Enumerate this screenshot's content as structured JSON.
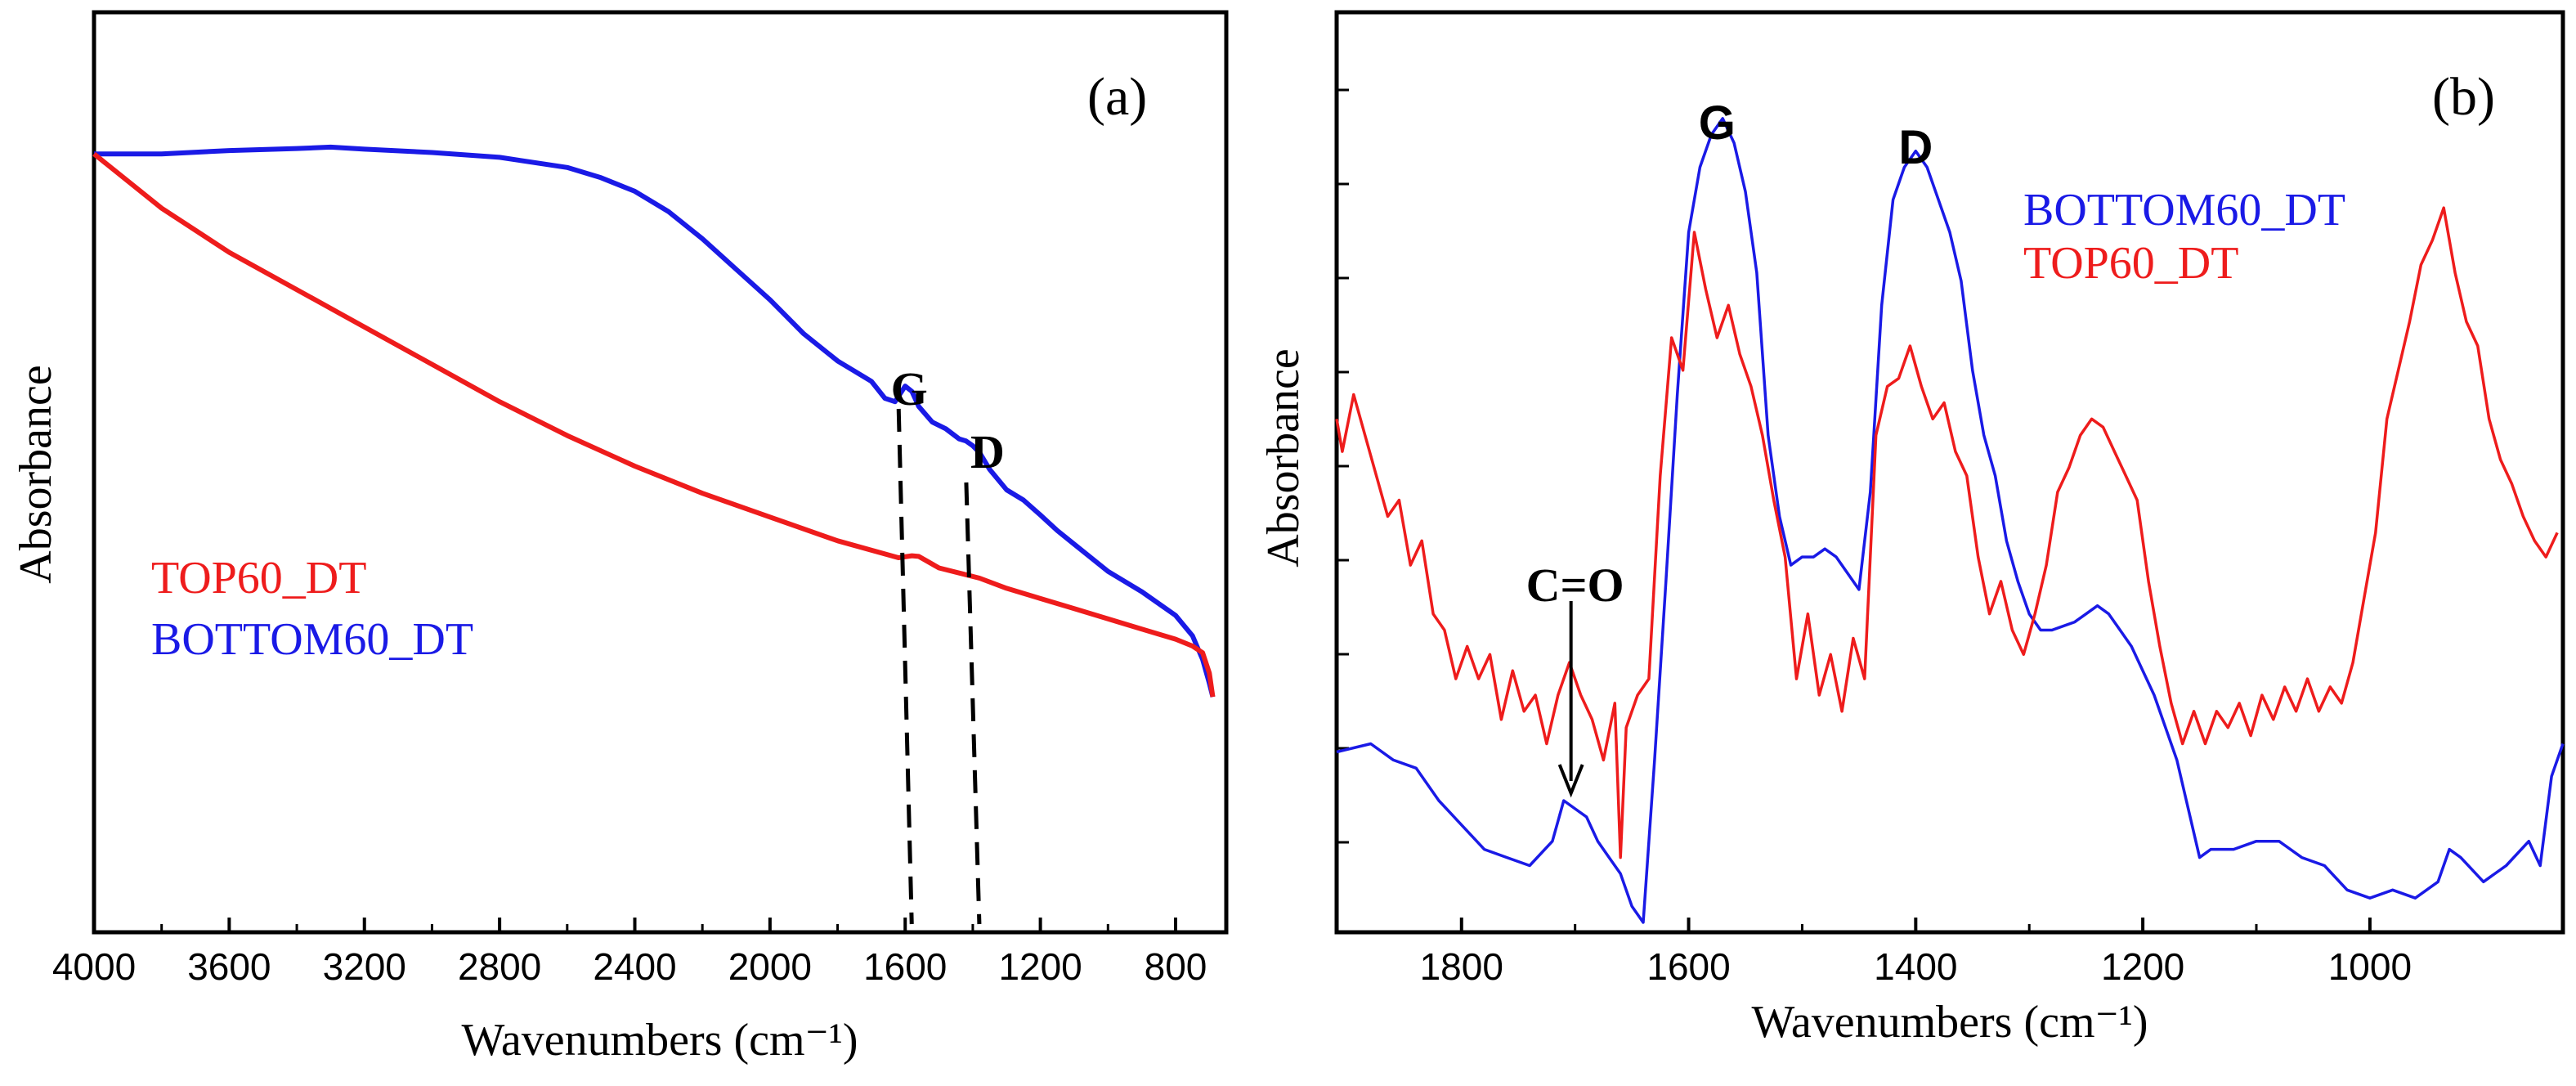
{
  "chart_data": [
    {
      "panel_tag": "(a)",
      "type": "line",
      "xlabel": "Wavenumbers (cm⁻¹)",
      "ylabel": "Absorbance",
      "xlim": [
        4000,
        650
      ],
      "ylim": [
        0,
        1
      ],
      "x_reversed": true,
      "y_ticks_labeled": false,
      "xticks": [
        4000,
        3600,
        3200,
        2800,
        2400,
        2000,
        1600,
        1200,
        800
      ],
      "xtick_labels": [
        "4000",
        "3600",
        "3200",
        "2800",
        "2400",
        "2000",
        "1600",
        "1200",
        "800"
      ],
      "legend": [
        {
          "label": "TOP60_DT",
          "color": "#ee1c1c"
        },
        {
          "label": "BOTTOM60_DT",
          "color": "#1a1ae6"
        }
      ],
      "series": [
        {
          "name": "BOTTOM60_DT",
          "color": "#1a1ae6",
          "x": [
            4000,
            3900,
            3800,
            3600,
            3400,
            3300,
            3200,
            3000,
            2800,
            2600,
            2500,
            2400,
            2300,
            2200,
            2100,
            2000,
            1900,
            1800,
            1750,
            1700,
            1660,
            1630,
            1600,
            1580,
            1560,
            1520,
            1480,
            1440,
            1420,
            1400,
            1380,
            1350,
            1300,
            1250,
            1200,
            1150,
            1100,
            1000,
            900,
            800,
            750,
            720,
            700,
            690
          ],
          "y": [
            0.96,
            0.96,
            0.96,
            0.965,
            0.968,
            0.97,
            0.967,
            0.962,
            0.955,
            0.94,
            0.925,
            0.905,
            0.875,
            0.835,
            0.79,
            0.745,
            0.695,
            0.655,
            0.64,
            0.625,
            0.6,
            0.595,
            0.618,
            0.61,
            0.588,
            0.565,
            0.555,
            0.54,
            0.537,
            0.53,
            0.52,
            0.495,
            0.465,
            0.45,
            0.428,
            0.405,
            0.385,
            0.345,
            0.315,
            0.28,
            0.25,
            0.215,
            0.18,
            0.16
          ]
        },
        {
          "name": "TOP60_DT",
          "color": "#ee1c1c",
          "x": [
            4000,
            3800,
            3600,
            3400,
            3200,
            3000,
            2800,
            2600,
            2400,
            2200,
            2000,
            1800,
            1620,
            1580,
            1560,
            1500,
            1420,
            1380,
            1300,
            1200,
            1100,
            1000,
            900,
            800,
            750,
            720,
            700,
            690
          ],
          "y": [
            0.96,
            0.88,
            0.815,
            0.76,
            0.705,
            0.65,
            0.595,
            0.545,
            0.5,
            0.46,
            0.425,
            0.39,
            0.365,
            0.368,
            0.367,
            0.35,
            0.34,
            0.335,
            0.32,
            0.305,
            0.29,
            0.275,
            0.26,
            0.245,
            0.235,
            0.225,
            0.195,
            0.16
          ]
        }
      ],
      "annotations": [
        {
          "label": "G",
          "x": 1600
        },
        {
          "label": "D",
          "x": 1400
        }
      ]
    },
    {
      "panel_tag": "(b)",
      "type": "line",
      "xlabel": "Wavenumbers (cm⁻¹)",
      "ylabel": "Absorbance",
      "xlim": [
        1910,
        830
      ],
      "ylim": [
        0,
        1
      ],
      "x_reversed": true,
      "y_ticks_labeled": false,
      "xticks": [
        1800,
        1600,
        1400,
        1200,
        1000
      ],
      "xtick_labels": [
        "1800",
        "1600",
        "1400",
        "1200",
        "1000"
      ],
      "legend": [
        {
          "label": "BOTTOM60_DT",
          "color": "#1a1ae6"
        },
        {
          "label": "TOP60_DT",
          "color": "#ee1c1c"
        }
      ],
      "series": [
        {
          "name": "BOTTOM60_DT",
          "color": "#1a1ae6",
          "x": [
            1910,
            1880,
            1860,
            1840,
            1820,
            1800,
            1780,
            1760,
            1740,
            1720,
            1710,
            1700,
            1690,
            1680,
            1670,
            1660,
            1650,
            1640,
            1630,
            1620,
            1610,
            1600,
            1590,
            1580,
            1570,
            1560,
            1550,
            1540,
            1530,
            1520,
            1510,
            1500,
            1490,
            1480,
            1470,
            1460,
            1450,
            1440,
            1430,
            1420,
            1410,
            1400,
            1390,
            1380,
            1370,
            1360,
            1350,
            1340,
            1330,
            1320,
            1310,
            1300,
            1290,
            1280,
            1260,
            1250,
            1240,
            1230,
            1220,
            1210,
            1200,
            1190,
            1180,
            1170,
            1160,
            1150,
            1140,
            1120,
            1100,
            1080,
            1060,
            1040,
            1020,
            1000,
            980,
            960,
            940,
            930,
            920,
            900,
            880,
            860,
            850,
            840,
            830
          ],
          "y": [
            0.21,
            0.22,
            0.2,
            0.19,
            0.15,
            0.12,
            0.09,
            0.08,
            0.07,
            0.1,
            0.15,
            0.14,
            0.13,
            0.1,
            0.08,
            0.06,
            0.02,
            0.0,
            0.2,
            0.42,
            0.65,
            0.85,
            0.93,
            0.97,
            0.99,
            0.96,
            0.9,
            0.8,
            0.6,
            0.5,
            0.44,
            0.45,
            0.45,
            0.46,
            0.45,
            0.43,
            0.41,
            0.53,
            0.76,
            0.89,
            0.93,
            0.95,
            0.93,
            0.89,
            0.85,
            0.79,
            0.68,
            0.6,
            0.55,
            0.47,
            0.42,
            0.38,
            0.36,
            0.36,
            0.37,
            0.38,
            0.39,
            0.38,
            0.36,
            0.34,
            0.31,
            0.28,
            0.24,
            0.2,
            0.14,
            0.08,
            0.09,
            0.09,
            0.1,
            0.1,
            0.08,
            0.07,
            0.04,
            0.03,
            0.04,
            0.03,
            0.05,
            0.09,
            0.08,
            0.05,
            0.07,
            0.1,
            0.07,
            0.18,
            0.22
          ]
        },
        {
          "name": "TOP60_DT",
          "color": "#ee1c1c",
          "x": [
            1910,
            1905,
            1895,
            1885,
            1875,
            1865,
            1855,
            1845,
            1835,
            1825,
            1815,
            1805,
            1795,
            1785,
            1775,
            1765,
            1755,
            1745,
            1735,
            1725,
            1715,
            1705,
            1695,
            1685,
            1675,
            1665,
            1660,
            1655,
            1645,
            1635,
            1625,
            1615,
            1605,
            1595,
            1585,
            1575,
            1565,
            1555,
            1545,
            1535,
            1525,
            1515,
            1505,
            1495,
            1485,
            1475,
            1465,
            1455,
            1445,
            1435,
            1425,
            1415,
            1405,
            1395,
            1385,
            1375,
            1365,
            1355,
            1345,
            1335,
            1325,
            1315,
            1305,
            1295,
            1285,
            1275,
            1265,
            1255,
            1245,
            1235,
            1225,
            1215,
            1205,
            1195,
            1185,
            1175,
            1165,
            1155,
            1145,
            1135,
            1125,
            1115,
            1105,
            1095,
            1085,
            1075,
            1065,
            1055,
            1045,
            1035,
            1025,
            1015,
            1005,
            995,
            985,
            975,
            965,
            955,
            945,
            935,
            925,
            915,
            905,
            895,
            885,
            875,
            865,
            855,
            845,
            835
          ],
          "y": [
            0.62,
            0.58,
            0.65,
            0.6,
            0.55,
            0.5,
            0.52,
            0.44,
            0.47,
            0.38,
            0.36,
            0.3,
            0.34,
            0.3,
            0.33,
            0.25,
            0.31,
            0.26,
            0.28,
            0.22,
            0.28,
            0.32,
            0.28,
            0.25,
            0.2,
            0.27,
            0.08,
            0.24,
            0.28,
            0.3,
            0.55,
            0.72,
            0.68,
            0.85,
            0.78,
            0.72,
            0.76,
            0.7,
            0.66,
            0.6,
            0.52,
            0.45,
            0.3,
            0.38,
            0.28,
            0.33,
            0.26,
            0.35,
            0.3,
            0.6,
            0.66,
            0.67,
            0.71,
            0.66,
            0.62,
            0.64,
            0.58,
            0.55,
            0.45,
            0.38,
            0.42,
            0.36,
            0.33,
            0.38,
            0.44,
            0.53,
            0.56,
            0.6,
            0.62,
            0.61,
            0.58,
            0.55,
            0.52,
            0.42,
            0.34,
            0.27,
            0.22,
            0.26,
            0.22,
            0.26,
            0.24,
            0.27,
            0.23,
            0.28,
            0.25,
            0.29,
            0.26,
            0.3,
            0.26,
            0.29,
            0.27,
            0.32,
            0.4,
            0.48,
            0.62,
            0.68,
            0.74,
            0.81,
            0.84,
            0.88,
            0.8,
            0.74,
            0.71,
            0.62,
            0.57,
            0.54,
            0.5,
            0.47,
            0.45,
            0.48
          ]
        }
      ],
      "annotations": [
        {
          "label": "G",
          "x": 1575
        },
        {
          "label": "D",
          "x": 1400
        },
        {
          "label": "C=O",
          "x": 1700
        }
      ]
    }
  ]
}
